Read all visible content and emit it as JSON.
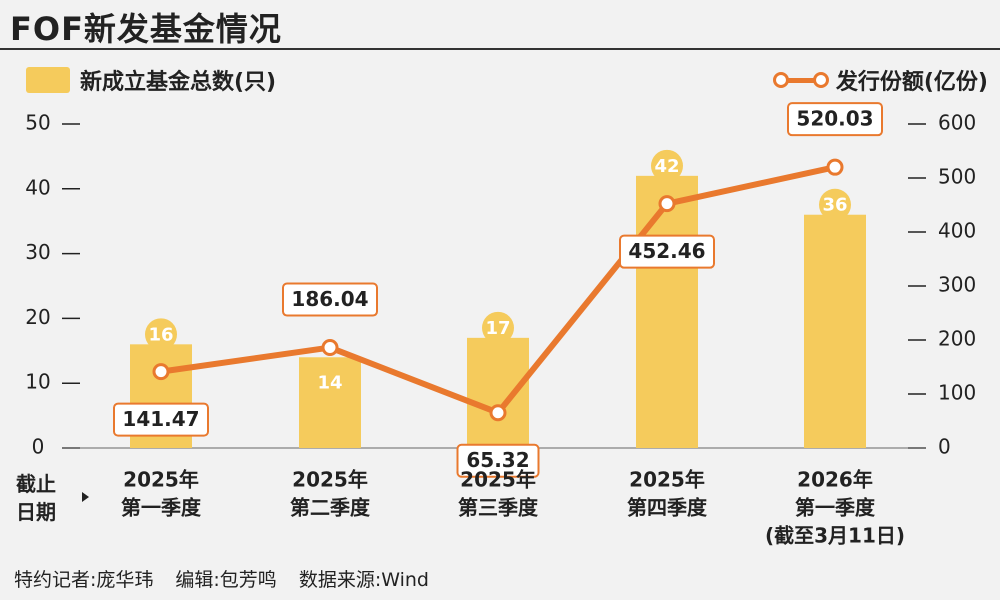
{
  "header": {
    "title": "FOF新发基金情况"
  },
  "legend": {
    "bars_label": "新成立基金总数(只)",
    "line_label": "发行份额(亿份)"
  },
  "x_caption_line1": "截止",
  "x_caption_line2": "日期",
  "footer": {
    "reporter": "特约记者:庞华玮",
    "editor": "编辑:包芳鸣",
    "source": "数据来源:Wind"
  },
  "colors": {
    "bar": "#f5cb5c",
    "line": "#e9792e",
    "background": "#f2f2f2"
  },
  "chart_data": {
    "type": "bar",
    "categories": [
      [
        "2025年",
        "第一季度"
      ],
      [
        "2025年",
        "第二季度"
      ],
      [
        "2025年",
        "第三季度"
      ],
      [
        "2025年",
        "第四季度"
      ],
      [
        "2026年",
        "第一季度",
        "(截至3月11日)"
      ]
    ],
    "series": [
      {
        "name": "新成立基金总数(只)",
        "type": "bar",
        "axis": "left",
        "values": [
          16,
          14,
          17,
          42,
          36
        ]
      },
      {
        "name": "发行份额(亿份)",
        "type": "line",
        "axis": "right",
        "values": [
          141.47,
          186.04,
          65.32,
          452.46,
          520.03
        ]
      }
    ],
    "y_left": {
      "ylim": [
        0,
        50
      ],
      "ticks": [
        0,
        10,
        20,
        30,
        40,
        50
      ]
    },
    "y_right": {
      "ylim": [
        0,
        600
      ],
      "ticks": [
        0,
        100,
        200,
        300,
        400,
        500,
        600
      ]
    },
    "line_label_position": [
      "below",
      "above",
      "below",
      "below",
      "above"
    ],
    "bar_label_position": [
      "top-badge",
      "inside",
      "top-badge",
      "top-badge",
      "top-badge"
    ]
  }
}
